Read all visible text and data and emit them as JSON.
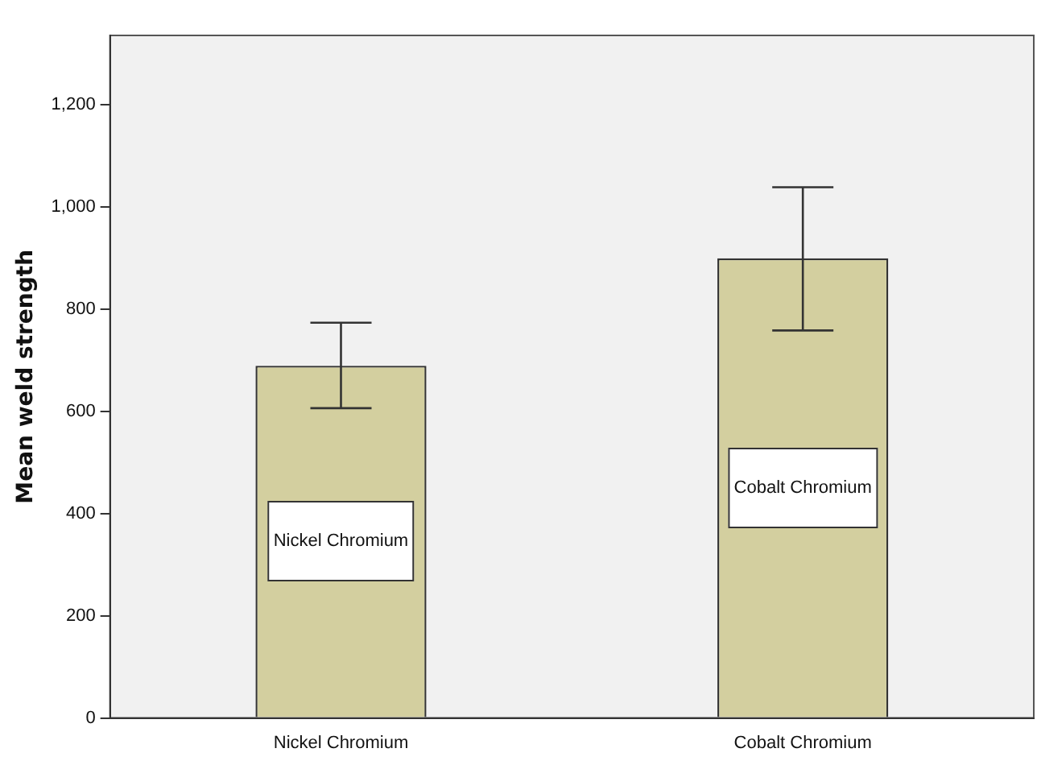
{
  "chart_data": {
    "type": "bar",
    "ylabel": "Mean weld strength",
    "categories": [
      "Nickel Chromium",
      "Cobalt Chromium"
    ],
    "values": [
      689,
      899
    ],
    "color": "#d3cf9f",
    "errors": [
      [
        606,
        773
      ],
      [
        758,
        1038
      ]
    ],
    "ylim": [
      0,
      1335
    ],
    "yticks": [
      0,
      200,
      400,
      600,
      800,
      {
        "value": 1000,
        "label": "1,000"
      },
      {
        "value": 1200,
        "label": "1,200"
      }
    ],
    "grid": false,
    "legend": false,
    "annotations": [
      "Nickel Chromium",
      "Cobalt Chromium"
    ]
  }
}
